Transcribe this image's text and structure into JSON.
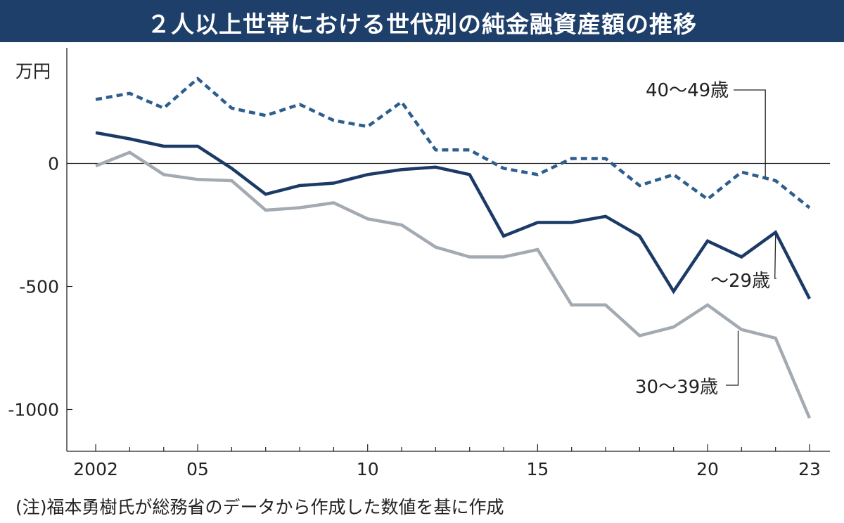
{
  "title": "２人以上世帯における世代別の純金融資産額の推移",
  "note": "(注)福本勇樹氏が総務省のデータから作成した数値を基に作成",
  "colors": {
    "title_bg": "#1f3f6b",
    "series_40s": "#2e5e8e",
    "series_u29": "#1b3a66",
    "series_30s": "#a4aab2"
  },
  "chart_data": {
    "type": "line",
    "ylabel": "万円",
    "ylim": [
      -1170,
      470
    ],
    "xlim": [
      2001.15,
      2023.6
    ],
    "y_ticks": [
      {
        "value": 0,
        "label": "0"
      },
      {
        "value": -500,
        "label": "-500"
      },
      {
        "value": -1000,
        "label": "-1000"
      }
    ],
    "x_ticks": [
      {
        "value": 2002,
        "label": "2002"
      },
      {
        "value": 2005,
        "label": "05"
      },
      {
        "value": 2010,
        "label": "10"
      },
      {
        "value": 2015,
        "label": "15"
      },
      {
        "value": 2020,
        "label": "20"
      },
      {
        "value": 2023,
        "label": "23"
      }
    ],
    "x": [
      2002,
      2003,
      2004,
      2005,
      2006,
      2007,
      2008,
      2009,
      2010,
      2011,
      2012,
      2013,
      2014,
      2015,
      2016,
      2017,
      2018,
      2019,
      2020,
      2021,
      2022,
      2023
    ],
    "series": [
      {
        "key": "40s",
        "name": "40～49歳",
        "style": "dashed",
        "values": [
          260,
          285,
          225,
          345,
          225,
          195,
          240,
          175,
          150,
          250,
          55,
          55,
          -20,
          -45,
          20,
          20,
          -90,
          -45,
          -145,
          -35,
          -70,
          -180
        ]
      },
      {
        "key": "u29",
        "name": "～29歳",
        "style": "solid",
        "values": [
          125,
          100,
          70,
          70,
          -20,
          -125,
          -90,
          -80,
          -45,
          -25,
          -15,
          -45,
          -295,
          -240,
          -240,
          -215,
          -295,
          -520,
          -315,
          -380,
          -280,
          -550
        ]
      },
      {
        "key": "30s",
        "name": "30～39歳",
        "style": "solid",
        "values": [
          -10,
          45,
          -45,
          -65,
          -70,
          -190,
          -180,
          -160,
          -225,
          -250,
          -340,
          -380,
          -380,
          -350,
          -575,
          -575,
          -700,
          -665,
          -575,
          -675,
          -710,
          -1035
        ]
      }
    ]
  }
}
